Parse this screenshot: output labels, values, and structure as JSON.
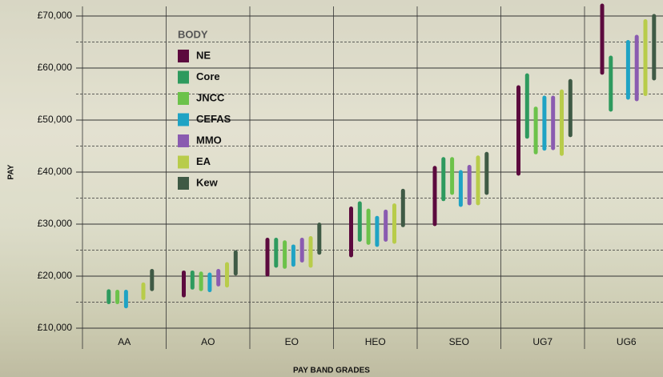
{
  "chart_data": {
    "type": "floating-bar",
    "x_label": "PAY BAND GRADES",
    "y_label": "PAY",
    "legend_title": "BODY",
    "categories": [
      "AA",
      "AO",
      "EO",
      "HEO",
      "SEO",
      "UG7",
      "UG6"
    ],
    "ylim": [
      10000,
      70000
    ],
    "yticks": [
      {
        "value": 10000,
        "label": "£10,000"
      },
      {
        "value": 20000,
        "label": "£20,000"
      },
      {
        "value": 30000,
        "label": "£30,000"
      },
      {
        "value": 40000,
        "label": "£40,000"
      },
      {
        "value": 50000,
        "label": "£50,000"
      },
      {
        "value": 60000,
        "label": "£60,000"
      },
      {
        "value": 70000,
        "label": "£70,000"
      }
    ],
    "minor_yticks": [
      15000,
      25000,
      35000,
      45000,
      55000,
      65000
    ],
    "grid": true,
    "series": [
      {
        "name": "NE",
        "color": "#5c0a3e",
        "low": [
          null,
          16300,
          20300,
          24000,
          30000,
          39700,
          59100
        ],
        "high": [
          null,
          20700,
          27000,
          33000,
          40800,
          56300,
          72000
        ]
      },
      {
        "name": "Core",
        "color": "#2e9a5e",
        "low": [
          15000,
          17800,
          22000,
          27000,
          34800,
          46800,
          52000
        ],
        "high": [
          17100,
          20700,
          27000,
          34000,
          42500,
          58600,
          62000
        ]
      },
      {
        "name": "JNCC",
        "color": "#6cc24a",
        "low": [
          15000,
          17500,
          21800,
          26400,
          36000,
          43800,
          null
        ],
        "high": [
          17000,
          20500,
          26500,
          32600,
          42500,
          52200,
          null
        ]
      },
      {
        "name": "CEFAS",
        "color": "#1fa3c4",
        "low": [
          14200,
          17300,
          22200,
          26000,
          33700,
          44500,
          54300
        ],
        "high": [
          17000,
          20300,
          25700,
          31200,
          40000,
          54300,
          65000
        ]
      },
      {
        "name": "MMO",
        "color": "#8a5bb0",
        "low": [
          null,
          18400,
          23000,
          27000,
          34000,
          44600,
          54000
        ],
        "high": [
          null,
          21000,
          27000,
          32400,
          41000,
          54300,
          66000
        ]
      },
      {
        "name": "EA",
        "color": "#b8cc4a",
        "low": [
          15800,
          18200,
          22000,
          26600,
          34000,
          43500,
          55000
        ],
        "high": [
          18400,
          22300,
          27300,
          33600,
          42800,
          55500,
          69000
        ]
      },
      {
        "name": "Kew",
        "color": "#3f5a45",
        "low": [
          17500,
          20500,
          24500,
          29800,
          36000,
          47100,
          58000
        ],
        "high": [
          21000,
          24600,
          29900,
          36400,
          43500,
          57500,
          70000
        ]
      }
    ]
  }
}
